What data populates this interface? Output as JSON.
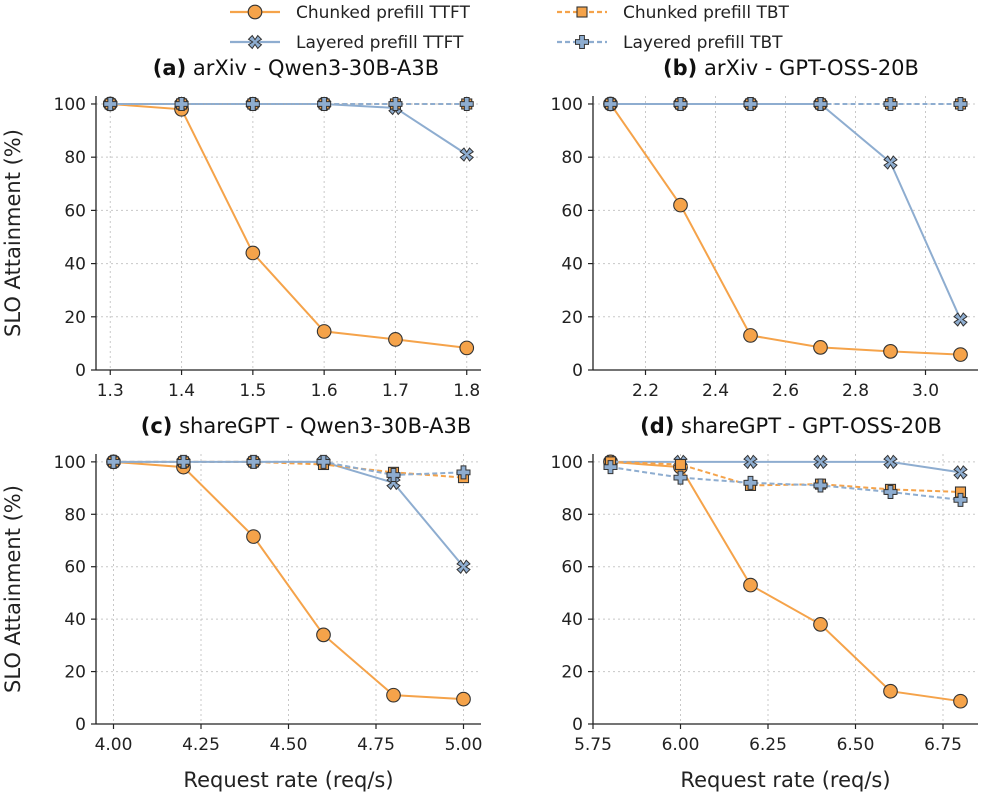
{
  "colors": {
    "chunked": "#f5a34a",
    "layered": "#8eadd0",
    "marker_edge": "#333333"
  },
  "legend": [
    {
      "label": "Chunked prefill TTFT",
      "color": "#f5a34a",
      "dash": false,
      "marker": "circle"
    },
    {
      "label": "Chunked prefill TBT",
      "color": "#f5a34a",
      "dash": true,
      "marker": "square"
    },
    {
      "label": "Layered prefill TTFT",
      "color": "#8eadd0",
      "dash": false,
      "marker": "x"
    },
    {
      "label": "Layered prefill TBT",
      "color": "#8eadd0",
      "dash": true,
      "marker": "plus"
    }
  ],
  "chart_data": [
    {
      "type": "line",
      "panel_tag": "(a)",
      "title": "arXiv - Qwen3-30B-A3B",
      "xlabel": "",
      "ylabel": "SLO Attainment (%)",
      "xlim": [
        1.28,
        1.82
      ],
      "ylim": [
        0,
        103
      ],
      "xticks": [
        1.3,
        1.4,
        1.5,
        1.6,
        1.7,
        1.8
      ],
      "xtick_labels": [
        "1.3",
        "1.4",
        "1.5",
        "1.6",
        "1.7",
        "1.8"
      ],
      "yticks": [
        0,
        20,
        40,
        60,
        80,
        100
      ],
      "ytick_labels": [
        "0",
        "20",
        "40",
        "60",
        "80",
        "100"
      ],
      "grid": true,
      "x": [
        1.3,
        1.4,
        1.5,
        1.6,
        1.7,
        1.8
      ],
      "series": [
        {
          "name": "Chunked prefill TTFT",
          "values": [
            100,
            98,
            44,
            14.5,
            11.5,
            8.3
          ]
        },
        {
          "name": "Chunked prefill TBT",
          "values": [
            100,
            100,
            100,
            100,
            100,
            100
          ]
        },
        {
          "name": "Layered prefill TTFT",
          "values": [
            100,
            100,
            100,
            100,
            98.5,
            81
          ]
        },
        {
          "name": "Layered prefill TBT",
          "values": [
            100,
            100,
            100,
            100,
            100,
            100
          ]
        }
      ]
    },
    {
      "type": "line",
      "panel_tag": "(b)",
      "title": "arXiv - GPT-OSS-20B",
      "xlabel": "",
      "ylabel": "",
      "xlim": [
        2.05,
        3.15
      ],
      "ylim": [
        0,
        103
      ],
      "xticks": [
        2.2,
        2.4,
        2.6,
        2.8,
        3.0
      ],
      "xtick_labels": [
        "2.2",
        "2.4",
        "2.6",
        "2.8",
        "3.0"
      ],
      "yticks": [
        0,
        20,
        40,
        60,
        80,
        100
      ],
      "ytick_labels": [
        "0",
        "20",
        "40",
        "60",
        "80",
        "100"
      ],
      "grid": true,
      "x": [
        2.1,
        2.3,
        2.5,
        2.7,
        2.9,
        3.1
      ],
      "series": [
        {
          "name": "Chunked prefill TTFT",
          "values": [
            100,
            62,
            13,
            8.5,
            7,
            5.8
          ]
        },
        {
          "name": "Chunked prefill TBT",
          "values": [
            100,
            100,
            100,
            100,
            100,
            100
          ]
        },
        {
          "name": "Layered prefill TTFT",
          "values": [
            100,
            100,
            100,
            100,
            78,
            19
          ]
        },
        {
          "name": "Layered prefill TBT",
          "values": [
            100,
            100,
            100,
            100,
            100,
            100
          ]
        }
      ]
    },
    {
      "type": "line",
      "panel_tag": "(c)",
      "title": "shareGPT - Qwen3-30B-A3B",
      "xlabel": "Request rate (req/s)",
      "ylabel": "SLO Attainment (%)",
      "xlim": [
        3.95,
        5.05
      ],
      "ylim": [
        0,
        103
      ],
      "xticks": [
        4.0,
        4.25,
        4.5,
        4.75,
        5.0
      ],
      "xtick_labels": [
        "4.00",
        "4.25",
        "4.50",
        "4.75",
        "5.00"
      ],
      "yticks": [
        0,
        20,
        40,
        60,
        80,
        100
      ],
      "ytick_labels": [
        "0",
        "20",
        "40",
        "60",
        "80",
        "100"
      ],
      "grid": true,
      "x": [
        4.0,
        4.2,
        4.4,
        4.6,
        4.8,
        5.0
      ],
      "series": [
        {
          "name": "Chunked prefill TTFT",
          "values": [
            100,
            98,
            71.5,
            34,
            11,
            9.5
          ]
        },
        {
          "name": "Chunked prefill TBT",
          "values": [
            100,
            100,
            100,
            99,
            96,
            94
          ]
        },
        {
          "name": "Layered prefill TTFT",
          "values": [
            100,
            100,
            100,
            100,
            92,
            60
          ]
        },
        {
          "name": "Layered prefill TBT",
          "values": [
            100,
            100,
            100,
            100,
            95,
            96
          ]
        }
      ]
    },
    {
      "type": "line",
      "panel_tag": "(d)",
      "title": "shareGPT - GPT-OSS-20B",
      "xlabel": "Request rate (req/s)",
      "ylabel": "",
      "xlim": [
        5.75,
        6.85
      ],
      "ylim": [
        0,
        103
      ],
      "xticks": [
        5.75,
        6.0,
        6.25,
        6.5,
        6.75
      ],
      "xtick_labels": [
        "5.75",
        "6.00",
        "6.25",
        "6.50",
        "6.75"
      ],
      "yticks": [
        0,
        20,
        40,
        60,
        80,
        100
      ],
      "ytick_labels": [
        "0",
        "20",
        "40",
        "60",
        "80",
        "100"
      ],
      "grid": true,
      "x": [
        5.8,
        6.0,
        6.2,
        6.4,
        6.6,
        6.8
      ],
      "series": [
        {
          "name": "Chunked prefill TTFT",
          "values": [
            100,
            98,
            53,
            38,
            12.5,
            8.7
          ]
        },
        {
          "name": "Chunked prefill TBT",
          "values": [
            100,
            99,
            91,
            91.5,
            89.5,
            88.5
          ]
        },
        {
          "name": "Layered prefill TTFT",
          "values": [
            100,
            100,
            100,
            100,
            100,
            96
          ]
        },
        {
          "name": "Layered prefill TBT",
          "values": [
            98,
            94,
            92,
            91,
            88.5,
            85.5
          ]
        }
      ]
    }
  ]
}
